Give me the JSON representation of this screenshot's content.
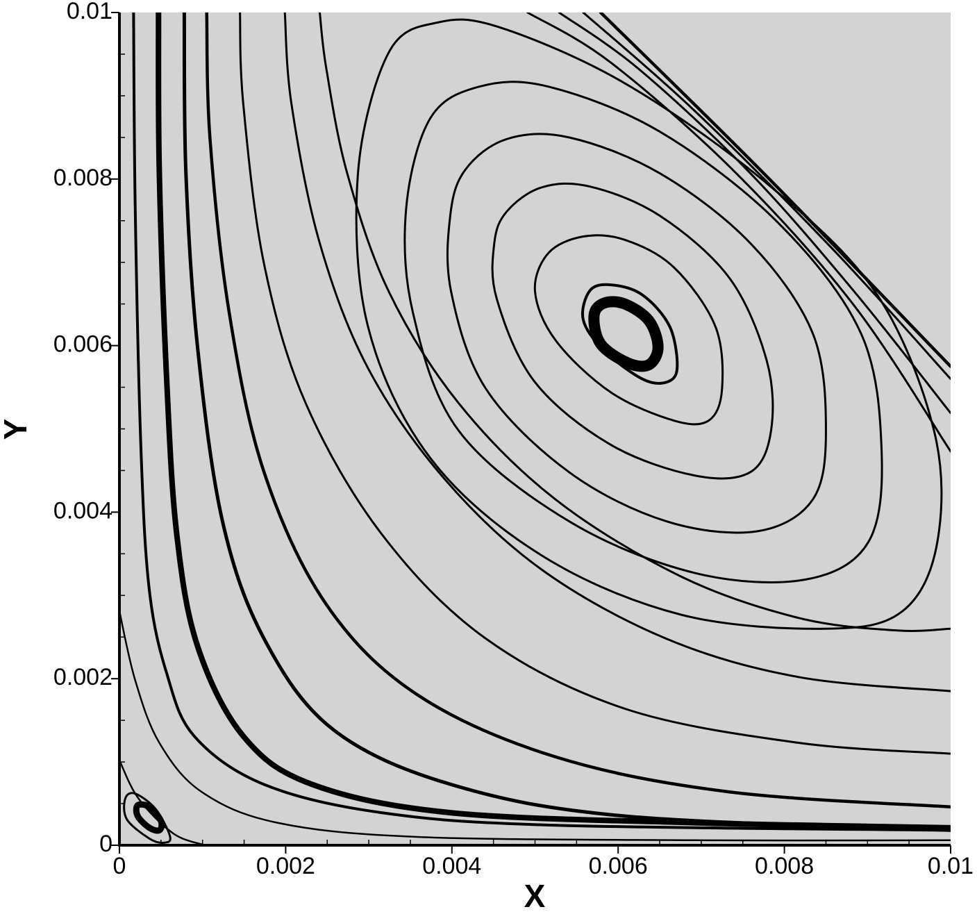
{
  "chart_data": {
    "type": "streamline",
    "x_label": "X",
    "y_label": "Y",
    "xlim": [
      0,
      0.01
    ],
    "ylim": [
      0,
      0.01
    ],
    "xticks": [
      0,
      0.002,
      0.004,
      0.006,
      0.008,
      0.01
    ],
    "yticks": [
      0,
      0.002,
      0.004,
      0.006,
      0.008,
      0.01
    ],
    "xminorticks": [
      0.0005,
      0.001,
      0.0015,
      0.0025,
      0.003,
      0.0035,
      0.0045,
      0.005,
      0.0055,
      0.0065,
      0.007,
      0.0075,
      0.0085,
      0.009,
      0.0095
    ],
    "yminorticks": [
      0.0005,
      0.001,
      0.0015,
      0.0025,
      0.003,
      0.0035,
      0.0045,
      0.005,
      0.0055,
      0.0065,
      0.007,
      0.0075,
      0.0085,
      0.009,
      0.0095
    ],
    "background": "#d3d3d3",
    "color": "#000000",
    "series": [
      {
        "closed": true,
        "width": 16,
        "x": [
          0.00583,
          0.00608,
          0.00637,
          0.00648,
          0.00637,
          0.00612,
          0.00579,
          0.00571
        ],
        "y": [
          0.00651,
          0.0065,
          0.0063,
          0.00598,
          0.00577,
          0.00579,
          0.00602,
          0.00636
        ]
      },
      {
        "closed": true,
        "width": 4,
        "x": [
          0.00566,
          0.00591,
          0.00629,
          0.00662,
          0.00671,
          0.00658,
          0.00629,
          0.00583,
          0.00558
        ],
        "y": [
          0.00666,
          0.00673,
          0.00661,
          0.00623,
          0.00573,
          0.00556,
          0.0056,
          0.00594,
          0.00631
        ]
      },
      {
        "closed": true,
        "width": 3,
        "x": [
          0.00516,
          0.00558,
          0.00608,
          0.00667,
          0.00717,
          0.00725,
          0.00709,
          0.00667,
          0.00591,
          0.00525,
          0.005
        ],
        "y": [
          0.00711,
          0.00731,
          0.00727,
          0.00694,
          0.00623,
          0.00548,
          0.0051,
          0.0051,
          0.00544,
          0.00606,
          0.00665
        ]
      },
      {
        "closed": true,
        "width": 3,
        "x": [
          0.00466,
          0.00508,
          0.00566,
          0.0065,
          0.00734,
          0.00779,
          0.00784,
          0.00759,
          0.00692,
          0.00591,
          0.005,
          0.00454,
          0.00451
        ],
        "y": [
          0.00761,
          0.0079,
          0.00791,
          0.00756,
          0.00681,
          0.00581,
          0.00498,
          0.00448,
          0.00444,
          0.00481,
          0.00556,
          0.00656,
          0.00723
        ]
      },
      {
        "closed": true,
        "width": 3,
        "x": [
          0.00416,
          0.00466,
          0.00541,
          0.0065,
          0.00759,
          0.00834,
          0.0085,
          0.00834,
          0.00767,
          0.00658,
          0.00541,
          0.00441,
          0.00399,
          0.00398
        ],
        "y": [
          0.00811,
          0.00848,
          0.0085,
          0.00807,
          0.00723,
          0.00615,
          0.00498,
          0.00415,
          0.00377,
          0.00389,
          0.00448,
          0.00548,
          0.00665,
          0.00756
        ]
      },
      {
        "closed": true,
        "width": 3,
        "x": [
          0.00374,
          0.00433,
          0.00516,
          0.0065,
          0.00792,
          0.00892,
          0.00917,
          0.00901,
          0.00825,
          0.00692,
          0.00541,
          0.00408,
          0.00353,
          0.00345
        ],
        "y": [
          0.00873,
          0.00911,
          0.00911,
          0.00857,
          0.00748,
          0.00615,
          0.00473,
          0.00364,
          0.00319,
          0.00327,
          0.00389,
          0.00498,
          0.0064,
          0.00765
        ]
      },
      {
        "closed": true,
        "width": 3,
        "x": [
          0.00324,
          0.00383,
          0.00458,
          0.00608,
          0.00775,
          0.00909,
          0.0098,
          0.00984,
          0.00942,
          0.0085,
          0.00675,
          0.00508,
          0.00374,
          0.00299,
          0.00287
        ],
        "y": [
          0.00952,
          0.00988,
          0.00982,
          0.00915,
          0.00798,
          0.00665,
          0.00498,
          0.00364,
          0.00281,
          0.0026,
          0.00277,
          0.00348,
          0.00465,
          0.00623,
          0.00807
        ]
      },
      {
        "closed": false,
        "width": 3,
        "x": [
          0.00241,
          0.00249,
          0.00274,
          0.00324,
          0.00408,
          0.00525,
          0.00675,
          0.00817,
          0.00934,
          0.01
        ],
        "y": [
          0.01,
          0.00932,
          0.00807,
          0.00665,
          0.00531,
          0.00415,
          0.00323,
          0.00273,
          0.00258,
          0.0026
        ]
      },
      {
        "closed": false,
        "width": 3,
        "x": [
          0.00199,
          0.00207,
          0.00241,
          0.00299,
          0.00391,
          0.00508,
          0.00658,
          0.00817,
          0.01
        ],
        "y": [
          0.01,
          0.0089,
          0.00723,
          0.00573,
          0.0044,
          0.00331,
          0.00248,
          0.00202,
          0.00185
        ]
      },
      {
        "closed": false,
        "width": 3,
        "x": [
          0.00145,
          0.00149,
          0.00174,
          0.00224,
          0.00316,
          0.00441,
          0.00608,
          0.00817,
          0.01
        ],
        "y": [
          0.01,
          0.0089,
          0.00698,
          0.00531,
          0.00373,
          0.00248,
          0.00164,
          0.00123,
          0.0011
        ]
      },
      {
        "closed": false,
        "width": 4.5,
        "x": [
          0.00105,
          0.00109,
          0.00132,
          0.00174,
          0.00249,
          0.00358,
          0.00525,
          0.00734,
          0.01
        ],
        "y": [
          0.01,
          0.00848,
          0.0064,
          0.00448,
          0.00289,
          0.00181,
          0.00106,
          0.00064,
          0.00046
        ]
      },
      {
        "closed": false,
        "width": 5,
        "x": [
          0.00078,
          0.0008,
          0.00094,
          0.00124,
          0.00174,
          0.00257,
          0.00399,
          0.00608,
          0.01
        ],
        "y": [
          0.01,
          0.00807,
          0.00598,
          0.00389,
          0.00248,
          0.00139,
          0.00073,
          0.00035,
          0.00018
        ]
      },
      {
        "closed": false,
        "width": 8,
        "x": [
          0.00047,
          0.00048,
          0.00057,
          0.00069,
          0.00094,
          0.00149,
          0.00232,
          0.00399,
          0.00692,
          0.01
        ],
        "y": [
          0.01,
          0.00807,
          0.00556,
          0.00373,
          0.00239,
          0.00131,
          0.00073,
          0.00039,
          0.00027,
          0.00021
        ]
      },
      {
        "closed": false,
        "width": 4,
        "x": [
          0.00017,
          0.00019,
          0.00026,
          0.00036,
          0.00057,
          0.0009,
          0.00174,
          0.00316,
          0.00525,
          0.01
        ],
        "y": [
          0.01,
          0.00765,
          0.00473,
          0.00306,
          0.00206,
          0.00131,
          0.00073,
          0.00039,
          0.00024,
          0.00018
        ]
      },
      {
        "closed": false,
        "width": 2.5,
        "x": [
          0,
          0.00019,
          0.00048,
          0.00099,
          0.0019,
          0.00358,
          0.00692,
          0.01
        ],
        "y": [
          0.00281,
          0.00198,
          0.00123,
          0.00064,
          0.00027,
          0.0001,
          6e-05,
          6e-05
        ]
      },
      {
        "closed": false,
        "width": 2.5,
        "x": [
          0,
          0.00023,
          0.00065,
          0.00103
        ],
        "y": [
          0.00102,
          0.00056,
          0.00014,
          0
        ]
      },
      {
        "closed": false,
        "width": 3,
        "x": [
          0.00491,
          0.00591,
          0.00742,
          0.00884,
          0.01
        ],
        "y": [
          0.01,
          0.0094,
          0.00807,
          0.00648,
          0.00473
        ]
      },
      {
        "closed": false,
        "width": 3,
        "x": [
          0.00529,
          0.00625,
          0.00759,
          0.00884,
          0.01
        ],
        "y": [
          0.01,
          0.00932,
          0.00807,
          0.00665,
          0.00519
        ]
      },
      {
        "closed": false,
        "width": 3,
        "x": [
          0.00558,
          0.00692,
          0.00859,
          0.01
        ],
        "y": [
          0.01,
          0.00882,
          0.00715,
          0.0056
        ]
      },
      {
        "closed": false,
        "width": 4.5,
        "x": [
          0.00579,
          0.00775,
          0.01
        ],
        "y": [
          0.01,
          0.00807,
          0.00575
        ]
      },
      {
        "closed": true,
        "width": 3,
        "x": [
          7e-05,
          0.00019,
          0.00044,
          0.00061,
          0.00053,
          0.00036,
          9e-05
        ],
        "y": [
          0.00056,
          0.00062,
          0.00043,
          0.0001,
          3e-05,
          8e-05,
          0.00031
        ]
      },
      {
        "closed": true,
        "width": 9,
        "x": [
          0.00022,
          0.00036,
          0.0005,
          0.00048,
          0.00036,
          0.00022
        ],
        "y": [
          0.00048,
          0.00046,
          0.00029,
          0.00018,
          0.00021,
          0.00035
        ]
      }
    ]
  }
}
